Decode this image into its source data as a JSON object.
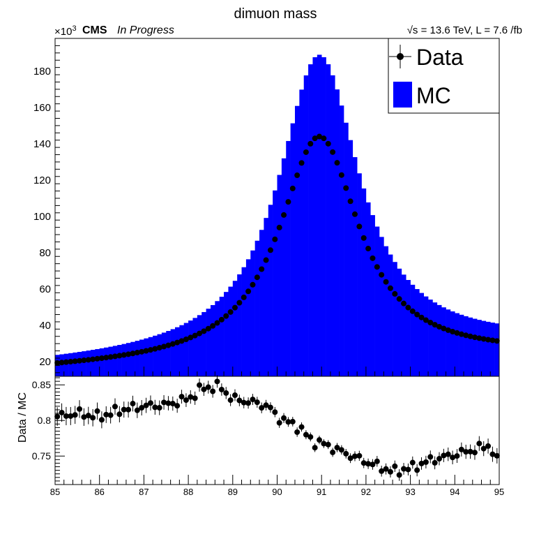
{
  "chart_data": [
    {
      "type": "bar",
      "role": "main",
      "title": "dimuon mass",
      "exponent_label_prefix": "×10",
      "exponent_label_power": "3",
      "cms_label": "CMS",
      "status_label": "In Progress",
      "lumi_label": "√s = 13.6 TeV, L = 7.6 /fb",
      "xlim": [
        85,
        95
      ],
      "ylim": [
        12,
        198
      ],
      "y_ticks": [
        20,
        40,
        60,
        80,
        100,
        120,
        140,
        160,
        180
      ],
      "y_scale_note": "values in units of 10^3",
      "bins": 100,
      "peak_center": 90.95,
      "series": [
        {
          "name": "Data",
          "style": "points",
          "color": "#000000",
          "peak_value": 144,
          "edge_values": [
            15,
            23
          ]
        },
        {
          "name": "MC",
          "style": "filled-histogram",
          "color": "#0000ff",
          "peak_value": 189,
          "edge_values": [
            18,
            30
          ]
        }
      ],
      "legend": {
        "position": "top-right",
        "entries": [
          "Data",
          "MC"
        ]
      }
    },
    {
      "type": "scatter",
      "role": "ratio",
      "ylabel": "Data / MC",
      "xlim": [
        85,
        95
      ],
      "ylim": [
        0.71,
        0.862
      ],
      "x_ticks": [
        85,
        86,
        87,
        88,
        89,
        90,
        91,
        92,
        93,
        94,
        95
      ],
      "y_ticks": [
        0.75,
        0.8,
        0.85
      ],
      "anchors_x": [
        85.0,
        85.5,
        86.0,
        86.5,
        87.0,
        87.5,
        88.0,
        88.3,
        88.7,
        89.0,
        89.5,
        89.8,
        90.0,
        90.5,
        90.8,
        91.0,
        91.5,
        92.0,
        92.4,
        92.6,
        93.0,
        93.5,
        94.0,
        94.5,
        94.8,
        95.0
      ],
      "anchors_y": [
        0.805,
        0.81,
        0.805,
        0.815,
        0.82,
        0.822,
        0.83,
        0.845,
        0.848,
        0.83,
        0.825,
        0.82,
        0.805,
        0.79,
        0.77,
        0.768,
        0.755,
        0.742,
        0.733,
        0.728,
        0.733,
        0.745,
        0.752,
        0.76,
        0.765,
        0.735
      ]
    }
  ]
}
